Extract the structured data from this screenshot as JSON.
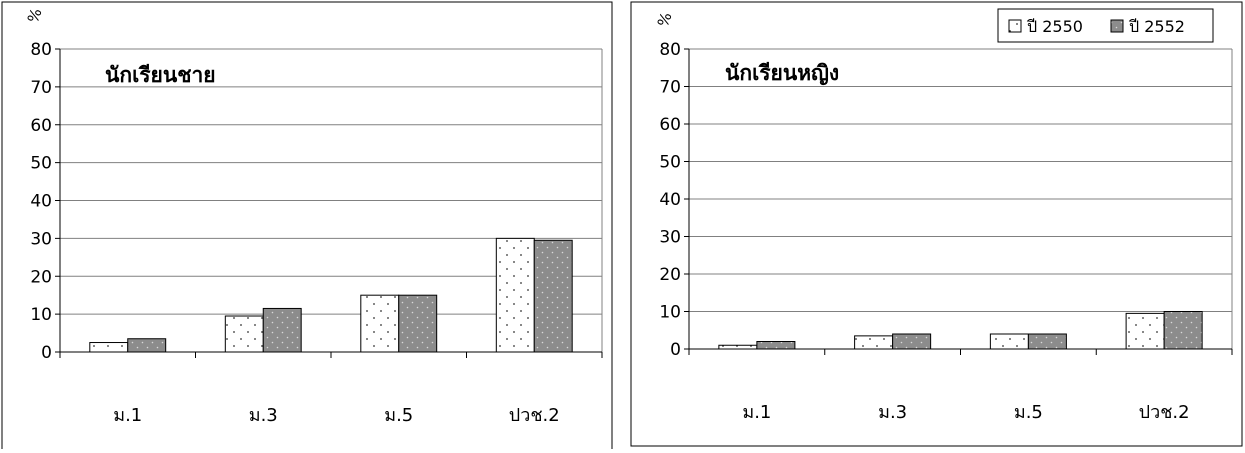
{
  "chart_data": [
    {
      "type": "bar",
      "title": "นักเรียนชาย",
      "ylabel": "%",
      "xlabel": "",
      "ylim": [
        0,
        80
      ],
      "yticks": [
        0,
        10,
        20,
        30,
        40,
        50,
        60,
        70,
        80
      ],
      "grid": true,
      "legend": "none",
      "categories": [
        "ม.1",
        "ม.3",
        "ม.5",
        "ปวช.2"
      ],
      "series": [
        {
          "name": "ปี 2550",
          "values": [
            2.5,
            9.5,
            15,
            30
          ]
        },
        {
          "name": "ปี 2552",
          "values": [
            3.5,
            11.5,
            15,
            29.5
          ]
        }
      ]
    },
    {
      "type": "bar",
      "title": "นักเรียนหญิง",
      "ylabel": "%",
      "xlabel": "",
      "ylim": [
        0,
        80
      ],
      "yticks": [
        0,
        10,
        20,
        30,
        40,
        50,
        60,
        70,
        80
      ],
      "grid": true,
      "legend": "top-right",
      "categories": [
        "ม.1",
        "ม.3",
        "ม.5",
        "ปวช.2"
      ],
      "series": [
        {
          "name": "ปี 2550",
          "values": [
            1,
            3.5,
            4,
            9.5
          ]
        },
        {
          "name": "ปี 2552",
          "values": [
            2,
            4,
            4,
            10
          ]
        }
      ]
    }
  ],
  "colors": {
    "series_2550": "#ffffff",
    "series_2552": "#8c8c8c"
  }
}
